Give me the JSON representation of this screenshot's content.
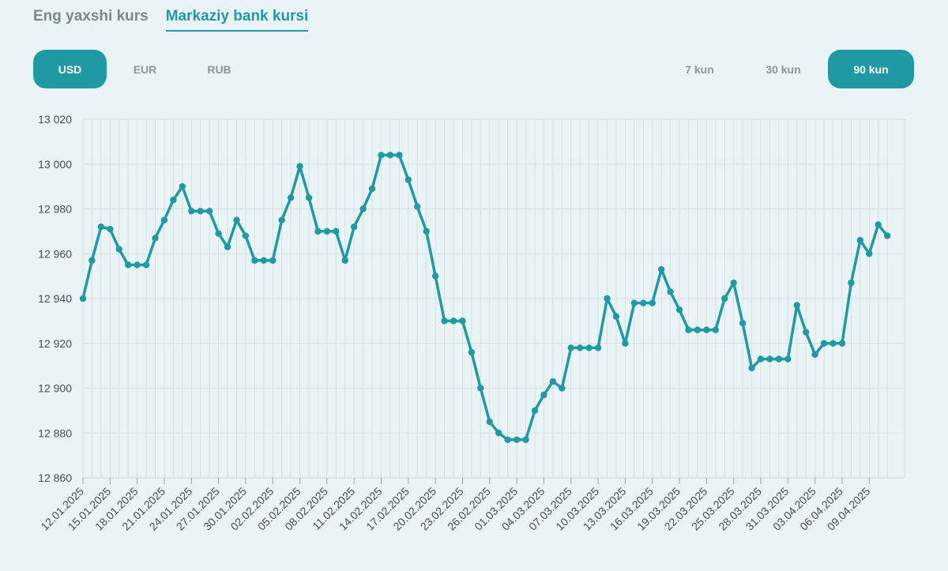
{
  "tabs": [
    {
      "label": "Eng yaxshi kurs",
      "active": false
    },
    {
      "label": "Markaziy bank kursi",
      "active": true
    }
  ],
  "currencies": [
    {
      "label": "USD",
      "active": true
    },
    {
      "label": "EUR",
      "active": false
    },
    {
      "label": "RUB",
      "active": false
    }
  ],
  "periods": [
    {
      "label": "7 kun",
      "active": false
    },
    {
      "label": "30 kun",
      "active": false
    },
    {
      "label": "90 kun",
      "active": true
    }
  ],
  "colors": {
    "accent": "#1f9aa5",
    "grid": "#d7dfe3",
    "background": "#eaf4f6"
  },
  "chart_data": {
    "type": "line",
    "title": "",
    "xlabel": "",
    "ylabel": "",
    "ylim": [
      12860,
      13020
    ],
    "y_ticks": [
      12860,
      12880,
      12900,
      12920,
      12940,
      12960,
      12980,
      13000,
      13020
    ],
    "y_tick_labels": [
      "12 860",
      "12 880",
      "12 900",
      "12 920",
      "12 940",
      "12 960",
      "12 980",
      "13 000",
      "13 020"
    ],
    "grid": true,
    "x_tick_labels": [
      "12.01.2025",
      "15.01.2025",
      "18.01.2025",
      "21.01.2025",
      "24.01.2025",
      "27.01.2025",
      "30.01.2025",
      "02.02.2025",
      "05.02.2025",
      "08.02.2025",
      "11.02.2025",
      "14.02.2025",
      "17.02.2025",
      "20.02.2025",
      "23.02.2025",
      "26.02.2025",
      "01.03.2025",
      "04.03.2025",
      "07.03.2025",
      "10.03.2025",
      "13.03.2025",
      "16.03.2025",
      "19.03.2025",
      "22.03.2025",
      "25.03.2025",
      "28.03.2025",
      "31.03.2025",
      "03.04.2025",
      "06.04.2025",
      "09.04.2025"
    ],
    "series": [
      {
        "values": [
          12940,
          12957,
          12972,
          12971,
          12962,
          12955,
          12955,
          12955,
          12967,
          12975,
          12984,
          12990,
          12979,
          12979,
          12979,
          12969,
          12963,
          12975,
          12968,
          12957,
          12957,
          12957,
          12975,
          12985,
          12999,
          12985,
          12970,
          12970,
          12970,
          12957,
          12972,
          12980,
          12989,
          13004,
          13004,
          13004,
          12993,
          12981,
          12970,
          12950,
          12930,
          12930,
          12930,
          12916,
          12900,
          12885,
          12880,
          12877,
          12877,
          12877,
          12890,
          12897,
          12903,
          12900,
          12918,
          12918,
          12918,
          12918,
          12940,
          12932,
          12920,
          12938,
          12938,
          12938,
          12953,
          12943,
          12935,
          12926,
          12926,
          12926,
          12926,
          12940,
          12947,
          12929,
          12909,
          12913,
          12913,
          12913,
          12913,
          12937,
          12925,
          12915,
          12920,
          12920,
          12920,
          12947,
          12966,
          12960,
          12973,
          12968
        ]
      }
    ]
  }
}
